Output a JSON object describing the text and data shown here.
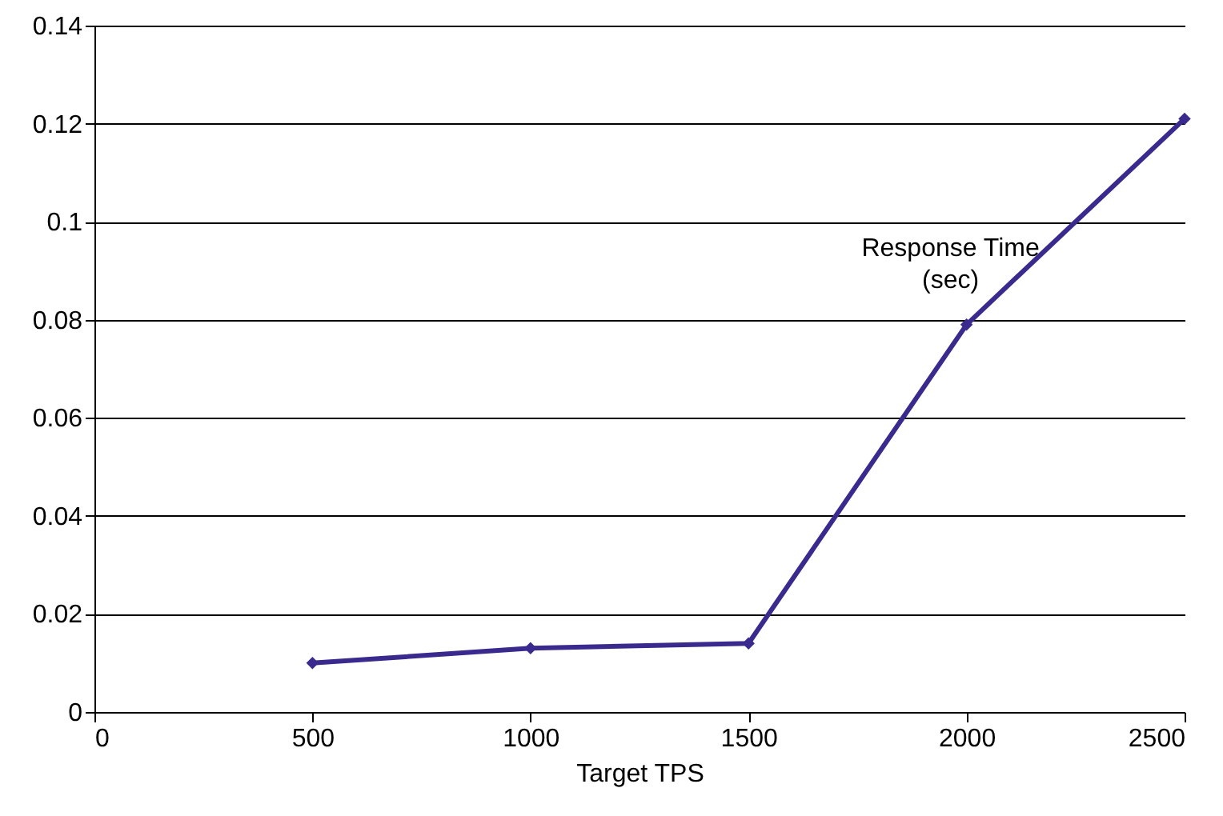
{
  "chart_data": {
    "type": "line",
    "xlabel": "Target TPS",
    "x": [
      500,
      1000,
      1500,
      2000,
      2500
    ],
    "series": [
      {
        "name": "Response Time (sec)",
        "color": "#3b2a8e",
        "values": [
          0.01,
          0.013,
          0.014,
          0.079,
          0.121
        ]
      }
    ],
    "xlim": [
      0,
      2500
    ],
    "xticks": [
      0,
      500,
      1000,
      1500,
      2000,
      2500
    ],
    "ylim": [
      0,
      0.14
    ],
    "yticks": [
      0,
      0.02,
      0.04,
      0.06,
      0.08,
      0.1,
      0.12,
      0.14
    ],
    "grid": "y",
    "marker": "diamond",
    "legend": false
  }
}
